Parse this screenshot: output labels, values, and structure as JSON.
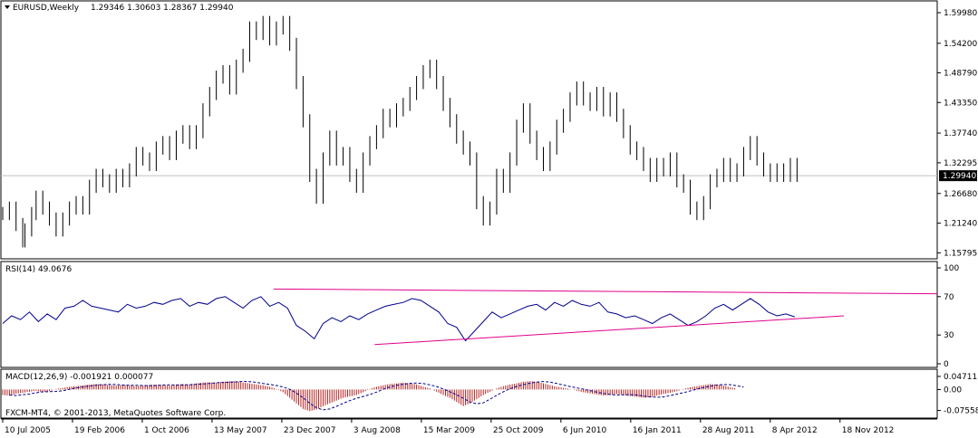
{
  "header": {
    "symbol": "EURUSD,Weekly",
    "ohlc": "1.29346 1.30603 1.28367 1.29940"
  },
  "rsi_label": "RSI(14) 49.0676",
  "macd_label": "MACD(12,26,9) -0.001921 0.000077",
  "copyright": "FXCM-MT4, © 2001-2013, MetaQuotes Software Corp.",
  "colors": {
    "candles": "#000000",
    "rsi_line": "#00008b",
    "trendline": "#e0008c",
    "macd_hist": "#b22222",
    "macd_signal": "#00008b",
    "current_price_line": "#c0c0c0",
    "price_tag_bg": "#000000"
  },
  "chart_data": {
    "type": "line",
    "price": {
      "current": 1.2994,
      "yticks": [
        1.598,
        1.542,
        1.4879,
        1.4335,
        1.3774,
        1.323,
        1.2668,
        1.2124,
        1.158
      ],
      "ytick_labels": [
        "1.59980",
        "1.54200",
        "1.48790",
        "1.43350",
        "1.37740",
        "1.32295",
        "1.26680",
        "1.21240",
        "1.15795"
      ],
      "current_label": "1.29940",
      "ylim": [
        1.1504,
        1.6163
      ],
      "series": [
        [
          0,
          1.23
        ],
        [
          3,
          1.24
        ],
        [
          6,
          1.21
        ],
        [
          9,
          1.18
        ],
        [
          10,
          1.2
        ],
        [
          13,
          1.23
        ],
        [
          15,
          1.26
        ],
        [
          18,
          1.24
        ],
        [
          21,
          1.22
        ],
        [
          24,
          1.2
        ],
        [
          27,
          1.22
        ],
        [
          30,
          1.24
        ],
        [
          33,
          1.25
        ],
        [
          36,
          1.24
        ],
        [
          39,
          1.28
        ],
        [
          42,
          1.3
        ],
        [
          45,
          1.29
        ],
        [
          48,
          1.28
        ],
        [
          51,
          1.3
        ],
        [
          54,
          1.29
        ],
        [
          57,
          1.31
        ],
        [
          60,
          1.34
        ],
        [
          63,
          1.33
        ],
        [
          66,
          1.32
        ],
        [
          69,
          1.35
        ],
        [
          72,
          1.36
        ],
        [
          75,
          1.34
        ],
        [
          78,
          1.37
        ],
        [
          81,
          1.38
        ],
        [
          84,
          1.36
        ],
        [
          87,
          1.38
        ],
        [
          90,
          1.42
        ],
        [
          93,
          1.45
        ],
        [
          96,
          1.48
        ],
        [
          99,
          1.49
        ],
        [
          102,
          1.46
        ],
        [
          105,
          1.5
        ],
        [
          108,
          1.52
        ],
        [
          111,
          1.57
        ],
        [
          114,
          1.56
        ],
        [
          117,
          1.58
        ],
        [
          120,
          1.55
        ],
        [
          123,
          1.57
        ],
        [
          126,
          1.58
        ],
        [
          129,
          1.54
        ],
        [
          132,
          1.47
        ],
        [
          135,
          1.4
        ],
        [
          138,
          1.3
        ],
        [
          141,
          1.26
        ],
        [
          144,
          1.33
        ],
        [
          147,
          1.37
        ],
        [
          150,
          1.33
        ],
        [
          153,
          1.34
        ],
        [
          156,
          1.3
        ],
        [
          159,
          1.28
        ],
        [
          162,
          1.33
        ],
        [
          165,
          1.36
        ],
        [
          168,
          1.38
        ],
        [
          171,
          1.41
        ],
        [
          174,
          1.4
        ],
        [
          177,
          1.42
        ],
        [
          180,
          1.43
        ],
        [
          183,
          1.45
        ],
        [
          186,
          1.47
        ],
        [
          189,
          1.49
        ],
        [
          192,
          1.5
        ],
        [
          195,
          1.47
        ],
        [
          198,
          1.43
        ],
        [
          201,
          1.4
        ],
        [
          204,
          1.37
        ],
        [
          207,
          1.35
        ],
        [
          210,
          1.33
        ],
        [
          213,
          1.25
        ],
        [
          216,
          1.22
        ],
        [
          219,
          1.24
        ],
        [
          222,
          1.3
        ],
        [
          225,
          1.28
        ],
        [
          228,
          1.33
        ],
        [
          231,
          1.39
        ],
        [
          234,
          1.42
        ],
        [
          237,
          1.37
        ],
        [
          240,
          1.34
        ],
        [
          243,
          1.32
        ],
        [
          246,
          1.35
        ],
        [
          249,
          1.39
        ],
        [
          252,
          1.41
        ],
        [
          255,
          1.44
        ],
        [
          258,
          1.46
        ],
        [
          261,
          1.44
        ],
        [
          264,
          1.43
        ],
        [
          267,
          1.45
        ],
        [
          270,
          1.42
        ],
        [
          273,
          1.44
        ],
        [
          276,
          1.41
        ],
        [
          279,
          1.38
        ],
        [
          282,
          1.35
        ],
        [
          285,
          1.34
        ],
        [
          288,
          1.32
        ],
        [
          291,
          1.3
        ],
        [
          294,
          1.32
        ],
        [
          297,
          1.31
        ],
        [
          300,
          1.33
        ],
        [
          303,
          1.29
        ],
        [
          306,
          1.28
        ],
        [
          309,
          1.24
        ],
        [
          312,
          1.23
        ],
        [
          315,
          1.25
        ],
        [
          318,
          1.29
        ],
        [
          321,
          1.3
        ],
        [
          324,
          1.32
        ],
        [
          327,
          1.3
        ],
        [
          330,
          1.31
        ],
        [
          333,
          1.34
        ],
        [
          336,
          1.36
        ],
        [
          339,
          1.33
        ],
        [
          342,
          1.31
        ],
        [
          345,
          1.3
        ],
        [
          348,
          1.31
        ],
        [
          351,
          1.3
        ],
        [
          354,
          1.32
        ],
        [
          357,
          1.3
        ]
      ]
    },
    "rsi": {
      "yticks": [
        100,
        70,
        30,
        0
      ],
      "ytick_labels": [
        "100",
        "70",
        "30",
        "0"
      ],
      "ylim": [
        0,
        100
      ],
      "series": [
        [
          0,
          42
        ],
        [
          4,
          50
        ],
        [
          8,
          46
        ],
        [
          12,
          54
        ],
        [
          16,
          44
        ],
        [
          20,
          52
        ],
        [
          24,
          46
        ],
        [
          28,
          58
        ],
        [
          32,
          60
        ],
        [
          36,
          66
        ],
        [
          40,
          60
        ],
        [
          44,
          58
        ],
        [
          48,
          56
        ],
        [
          52,
          54
        ],
        [
          56,
          62
        ],
        [
          60,
          58
        ],
        [
          64,
          60
        ],
        [
          68,
          64
        ],
        [
          72,
          62
        ],
        [
          76,
          66
        ],
        [
          80,
          68
        ],
        [
          84,
          60
        ],
        [
          88,
          64
        ],
        [
          92,
          62
        ],
        [
          96,
          68
        ],
        [
          100,
          70
        ],
        [
          104,
          64
        ],
        [
          108,
          58
        ],
        [
          112,
          66
        ],
        [
          116,
          70
        ],
        [
          120,
          60
        ],
        [
          124,
          64
        ],
        [
          128,
          58
        ],
        [
          132,
          40
        ],
        [
          136,
          34
        ],
        [
          140,
          26
        ],
        [
          144,
          42
        ],
        [
          148,
          48
        ],
        [
          152,
          44
        ],
        [
          156,
          50
        ],
        [
          160,
          46
        ],
        [
          164,
          52
        ],
        [
          168,
          56
        ],
        [
          172,
          60
        ],
        [
          176,
          62
        ],
        [
          180,
          64
        ],
        [
          184,
          68
        ],
        [
          188,
          66
        ],
        [
          192,
          60
        ],
        [
          196,
          54
        ],
        [
          200,
          42
        ],
        [
          204,
          38
        ],
        [
          208,
          24
        ],
        [
          212,
          34
        ],
        [
          216,
          44
        ],
        [
          220,
          54
        ],
        [
          224,
          48
        ],
        [
          228,
          52
        ],
        [
          232,
          56
        ],
        [
          236,
          60
        ],
        [
          240,
          62
        ],
        [
          244,
          56
        ],
        [
          248,
          64
        ],
        [
          252,
          60
        ],
        [
          256,
          66
        ],
        [
          260,
          62
        ],
        [
          264,
          60
        ],
        [
          268,
          64
        ],
        [
          272,
          54
        ],
        [
          276,
          52
        ],
        [
          280,
          48
        ],
        [
          284,
          50
        ],
        [
          288,
          46
        ],
        [
          292,
          42
        ],
        [
          296,
          48
        ],
        [
          300,
          52
        ],
        [
          304,
          46
        ],
        [
          308,
          40
        ],
        [
          312,
          44
        ],
        [
          316,
          50
        ],
        [
          320,
          58
        ],
        [
          324,
          62
        ],
        [
          328,
          56
        ],
        [
          332,
          62
        ],
        [
          336,
          68
        ],
        [
          340,
          62
        ],
        [
          344,
          54
        ],
        [
          348,
          50
        ],
        [
          352,
          52
        ],
        [
          356,
          49
        ]
      ]
    },
    "trendlines": [
      {
        "x1": 126,
        "y1": 78,
        "x2": 400,
        "y2": 73
      },
      {
        "x1": 173,
        "y1": 20,
        "x2": 360,
        "y2": 50
      }
    ],
    "macd": {
      "yticks": [
        0.047113,
        0.0,
        -0.075582
      ],
      "ytick_labels": [
        "0.047113",
        "0.00",
        "-0.075582"
      ],
      "ylim": [
        -0.09,
        0.06
      ],
      "hist": [
        [
          0,
          -0.02
        ],
        [
          3,
          -0.022
        ],
        [
          6,
          -0.015
        ],
        [
          9,
          -0.012
        ],
        [
          12,
          -0.008
        ],
        [
          15,
          -0.005
        ],
        [
          18,
          -0.01
        ],
        [
          21,
          -0.006
        ],
        [
          24,
          0.002
        ],
        [
          27,
          0.006
        ],
        [
          30,
          0.01
        ],
        [
          33,
          0.012
        ],
        [
          36,
          0.015
        ],
        [
          39,
          0.018
        ],
        [
          42,
          0.02
        ],
        [
          45,
          0.018
        ],
        [
          48,
          0.016
        ],
        [
          51,
          0.014
        ],
        [
          54,
          0.016
        ],
        [
          57,
          0.015
        ],
        [
          60,
          0.012
        ],
        [
          63,
          0.014
        ],
        [
          66,
          0.017
        ],
        [
          69,
          0.018
        ],
        [
          72,
          0.016
        ],
        [
          75,
          0.014
        ],
        [
          78,
          0.018
        ],
        [
          81,
          0.02
        ],
        [
          84,
          0.018
        ],
        [
          87,
          0.022
        ],
        [
          90,
          0.025
        ],
        [
          93,
          0.026
        ],
        [
          96,
          0.024
        ],
        [
          99,
          0.028
        ],
        [
          102,
          0.03
        ],
        [
          105,
          0.03
        ],
        [
          108,
          0.025
        ],
        [
          111,
          0.022
        ],
        [
          114,
          0.018
        ],
        [
          117,
          0.015
        ],
        [
          120,
          0.01
        ],
        [
          123,
          0.002
        ],
        [
          126,
          -0.01
        ],
        [
          129,
          -0.03
        ],
        [
          132,
          -0.05
        ],
        [
          135,
          -0.07
        ],
        [
          138,
          -0.078
        ],
        [
          141,
          -0.072
        ],
        [
          144,
          -0.06
        ],
        [
          147,
          -0.05
        ],
        [
          150,
          -0.04
        ],
        [
          153,
          -0.03
        ],
        [
          156,
          -0.025
        ],
        [
          159,
          -0.02
        ],
        [
          162,
          -0.01
        ],
        [
          165,
          0.002
        ],
        [
          168,
          0.01
        ],
        [
          171,
          0.015
        ],
        [
          174,
          0.02
        ],
        [
          177,
          0.022
        ],
        [
          180,
          0.025
        ],
        [
          183,
          0.022
        ],
        [
          186,
          0.018
        ],
        [
          189,
          0.01
        ],
        [
          192,
          0.004
        ],
        [
          195,
          -0.008
        ],
        [
          198,
          -0.02
        ],
        [
          201,
          -0.03
        ],
        [
          204,
          -0.045
        ],
        [
          207,
          -0.06
        ],
        [
          210,
          -0.05
        ],
        [
          213,
          -0.035
        ],
        [
          216,
          -0.02
        ],
        [
          219,
          -0.008
        ],
        [
          222,
          0.004
        ],
        [
          225,
          0.012
        ],
        [
          228,
          0.018
        ],
        [
          231,
          0.022
        ],
        [
          234,
          0.028
        ],
        [
          237,
          0.03
        ],
        [
          240,
          0.028
        ],
        [
          243,
          0.022
        ],
        [
          246,
          0.016
        ],
        [
          249,
          0.01
        ],
        [
          252,
          0.006
        ],
        [
          255,
          0.002
        ],
        [
          258,
          -0.004
        ],
        [
          261,
          -0.01
        ],
        [
          264,
          -0.014
        ],
        [
          267,
          -0.018
        ],
        [
          270,
          -0.022
        ],
        [
          273,
          -0.02
        ],
        [
          276,
          -0.016
        ],
        [
          279,
          -0.02
        ],
        [
          282,
          -0.024
        ],
        [
          285,
          -0.026
        ],
        [
          288,
          -0.03
        ],
        [
          291,
          -0.028
        ],
        [
          294,
          -0.022
        ],
        [
          297,
          -0.016
        ],
        [
          300,
          -0.012
        ],
        [
          303,
          -0.006
        ],
        [
          306,
          0.002
        ],
        [
          309,
          0.008
        ],
        [
          312,
          0.012
        ],
        [
          315,
          0.016
        ],
        [
          318,
          0.02
        ],
        [
          321,
          0.018
        ],
        [
          324,
          0.014
        ],
        [
          327,
          0.008
        ],
        [
          330,
          0.004
        ]
      ]
    },
    "xticks": [
      {
        "x": 0,
        "label": "10 Jul 2005"
      },
      {
        "x": 32,
        "label": "19 Feb 2006"
      },
      {
        "x": 64,
        "label": "1 Oct 2006"
      },
      {
        "x": 96,
        "label": "13 May 2007"
      },
      {
        "x": 128,
        "label": "23 Dec 2007"
      },
      {
        "x": 160,
        "label": "3 Aug 2008"
      },
      {
        "x": 192,
        "label": "15 Mar 2009"
      },
      {
        "x": 224,
        "label": "25 Oct 2009"
      },
      {
        "x": 256,
        "label": "6 Jun 2010"
      },
      {
        "x": 288,
        "label": "16 Jan 2011"
      },
      {
        "x": 320,
        "label": "28 Aug 2011"
      },
      {
        "x": 352,
        "label": "8 Apr 2012"
      },
      {
        "x": 384,
        "label": "18 Nov 2012"
      }
    ],
    "xlim": [
      0,
      420
    ],
    "grid": false
  }
}
